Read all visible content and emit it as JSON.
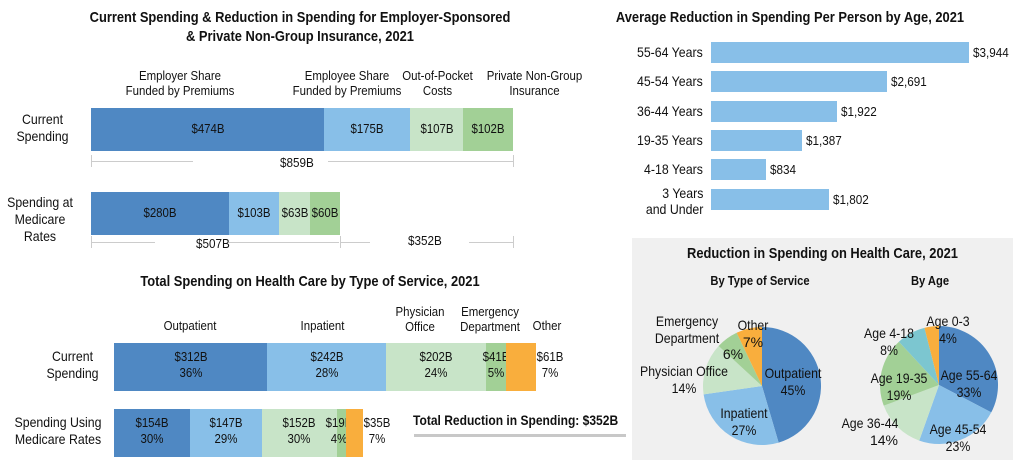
{
  "colors": {
    "dark_blue": "#4f88c3",
    "light_blue": "#88bfe8",
    "pale_green": "#c8e4c8",
    "green": "#a2d096",
    "orange": "#f9ae3d",
    "teal": "#7cc6d0",
    "bracket_gray": "#cccccc",
    "panel_gray": "#f0f0f0"
  },
  "chart_data": [
    {
      "id": "employer_chart",
      "type": "bar",
      "orientation": "horizontal-stacked",
      "title": "Current Spending & Reduction in Spending for Employer-Sponsored & Private Non-Group Insurance, 2021",
      "title_lines": [
        "Current Spending & Reduction in Spending for Employer-Sponsored",
        "& Private Non-Group Insurance, 2021"
      ],
      "segment_headers": [
        [
          "Employer Share",
          "Funded by Premiums"
        ],
        [
          "Employee Share",
          "Funded by Premiums"
        ],
        [
          "Out-of-Pocket",
          "Costs"
        ],
        [
          "Private Non-Group",
          "Insurance"
        ]
      ],
      "categories": [
        "Employer Share Funded by Premiums",
        "Employee Share Funded by Premiums",
        "Out-of-Pocket Costs",
        "Private Non-Group Insurance"
      ],
      "series": [
        {
          "name": "Current Spending",
          "label_lines": [
            "Current",
            "Spending"
          ],
          "values": [
            474,
            175,
            107,
            102
          ],
          "labels": [
            "$474B",
            "$175B",
            "$107B",
            "$102B"
          ]
        },
        {
          "name": "Spending at Medicare Rates",
          "label_lines": [
            "Spending at",
            "Medicare",
            "Rates"
          ],
          "values": [
            280,
            103,
            63,
            60
          ],
          "labels": [
            "$280B",
            "$103B",
            "$63B",
            "$60B"
          ]
        }
      ],
      "totals": {
        "current": "$859B",
        "medicare": "$507B",
        "reduction": "$352B"
      },
      "units": "billions USD"
    },
    {
      "id": "service_chart",
      "type": "bar",
      "orientation": "horizontal-stacked",
      "title": "Total Spending on Health Care by Type of Service, 2021",
      "segment_headers": [
        [
          "Outpatient"
        ],
        [
          "Inpatient"
        ],
        [
          "Physician",
          "Office"
        ],
        [
          "Emergency",
          "Department"
        ],
        [
          "Other"
        ]
      ],
      "categories": [
        "Outpatient",
        "Inpatient",
        "Physician Office",
        "Emergency Department",
        "Other"
      ],
      "series": [
        {
          "name": "Current Spending",
          "label_lines": [
            "Current",
            "Spending"
          ],
          "values": [
            312,
            242,
            202,
            41,
            61
          ],
          "labels": [
            "$312B",
            "$242B",
            "$202B",
            "$41B",
            "$61B"
          ],
          "percents": [
            "36%",
            "28%",
            "24%",
            "5%",
            "7%"
          ]
        },
        {
          "name": "Spending Using Medicare Rates",
          "label_lines": [
            "Spending Using",
            "Medicare Rates"
          ],
          "values": [
            154,
            147,
            152,
            19,
            35
          ],
          "labels": [
            "$154B",
            "$147B",
            "$152B",
            "$19B",
            "$35B"
          ],
          "percents": [
            "30%",
            "29%",
            "30%",
            "4%",
            "7%"
          ]
        }
      ],
      "annotation": "Total Reduction in Spending: $352B",
      "units": "billions USD"
    },
    {
      "id": "age_chart",
      "type": "bar",
      "orientation": "horizontal",
      "title": "Average Reduction in Spending Per Person by Age, 2021",
      "categories": [
        "55-64 Years",
        "45-54 Years",
        "36-44 Years",
        "19-35 Years",
        "4-18 Years",
        "3 Years and Under"
      ],
      "category_lines": [
        [
          "55-64 Years"
        ],
        [
          "45-54 Years"
        ],
        [
          "36-44 Years"
        ],
        [
          "19-35 Years"
        ],
        [
          "4-18 Years"
        ],
        [
          "3 Years",
          "and Under"
        ]
      ],
      "values": [
        3944,
        2691,
        1922,
        1387,
        834,
        1802
      ],
      "labels": [
        "$3,944",
        "$2,691",
        "$1,922",
        "$1,387",
        "$834",
        "$1,802"
      ],
      "units": "USD per person"
    },
    {
      "id": "pie_service",
      "type": "pie",
      "title": "Reduction in Spending on Health Care, 2021",
      "subtitle": "By Type of Service",
      "slices": [
        {
          "name": "Outpatient",
          "value": 45,
          "label": "45%"
        },
        {
          "name": "Inpatient",
          "value": 27,
          "label": "27%"
        },
        {
          "name": "Physician Office",
          "value": 14,
          "label": "14%"
        },
        {
          "name": "Emergency Department",
          "value": 6,
          "label": "6%"
        },
        {
          "name": "Other",
          "value": 7,
          "label": "7%"
        }
      ]
    },
    {
      "id": "pie_age",
      "type": "pie",
      "title": "Reduction in Spending on Health Care, 2021",
      "subtitle": "By Age",
      "slices": [
        {
          "name": "Age 55-64",
          "value": 33,
          "label": "33%"
        },
        {
          "name": "Age 45-54",
          "value": 23,
          "label": "23%"
        },
        {
          "name": "Age 36-44",
          "value": 14,
          "label": "14%"
        },
        {
          "name": "Age 19-35",
          "value": 19,
          "label": "19%"
        },
        {
          "name": "Age 4-18",
          "value": 8,
          "label": "8%"
        },
        {
          "name": "Age 0-3",
          "value": 4,
          "label": "4%"
        }
      ]
    }
  ],
  "panel": {
    "title": "Reduction in Spending on Health Care, 2021",
    "left_subtitle": "By Type of Service",
    "right_subtitle": "By Age"
  }
}
